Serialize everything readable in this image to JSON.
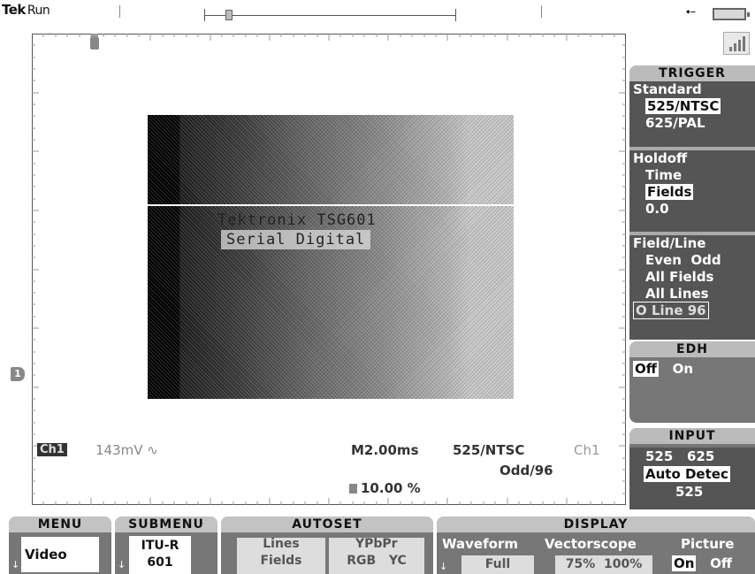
{
  "status": {
    "brand": "Tek",
    "run_state": "Run"
  },
  "screen": {
    "picture_text_line1": "Tektronix TSG601",
    "picture_text_line2": "Serial Digital",
    "channel_label": "Ch1",
    "volts_per_div": "143mV ∿",
    "timebase": "M2.00ms",
    "standard_readout": "525/NTSC",
    "trigger_source": "Ch1",
    "field_line_readout": "Odd/96",
    "trigger_position": "10.00 %",
    "channel_marker": "1"
  },
  "trigger_menu": {
    "title": "TRIGGER",
    "standard_label": "Standard",
    "standard_options": [
      "525/NTSC",
      "625/PAL"
    ],
    "holdoff_label": "Holdoff",
    "holdoff_options": [
      "Time",
      "Fields"
    ],
    "holdoff_value": "0.0",
    "field_line_label": "Field/Line",
    "field_even": "Even",
    "field_odd": "Odd",
    "all_fields": "All Fields",
    "all_lines": "All Lines",
    "line_select": "O Line 96"
  },
  "edh_menu": {
    "title": "EDH",
    "off": "Off",
    "on": "On"
  },
  "input_menu": {
    "title": "INPUT",
    "opt_525": "525",
    "opt_625": "625",
    "auto_detect": "Auto Detec",
    "detected": "525"
  },
  "bottom_menu": {
    "menu_title": "MENU",
    "menu_value": "Video",
    "submenu_title": "SUBMENU",
    "submenu_value_1": "ITU-R",
    "submenu_value_2": "601",
    "autoset_title": "AUTOSET",
    "autoset_lines": "Lines",
    "autoset_fields": "Fields",
    "autoset_ypbpr": "YPbPr",
    "autoset_rgb": "RGB",
    "autoset_yc": "YC",
    "display_title": "DISPLAY",
    "waveform_label": "Waveform",
    "waveform_value": "Full",
    "vectorscope_label": "Vectorscope",
    "vectorscope_75": "75%",
    "vectorscope_100": "100%",
    "picture_label": "Picture",
    "picture_on": "On",
    "picture_off": "Off"
  }
}
